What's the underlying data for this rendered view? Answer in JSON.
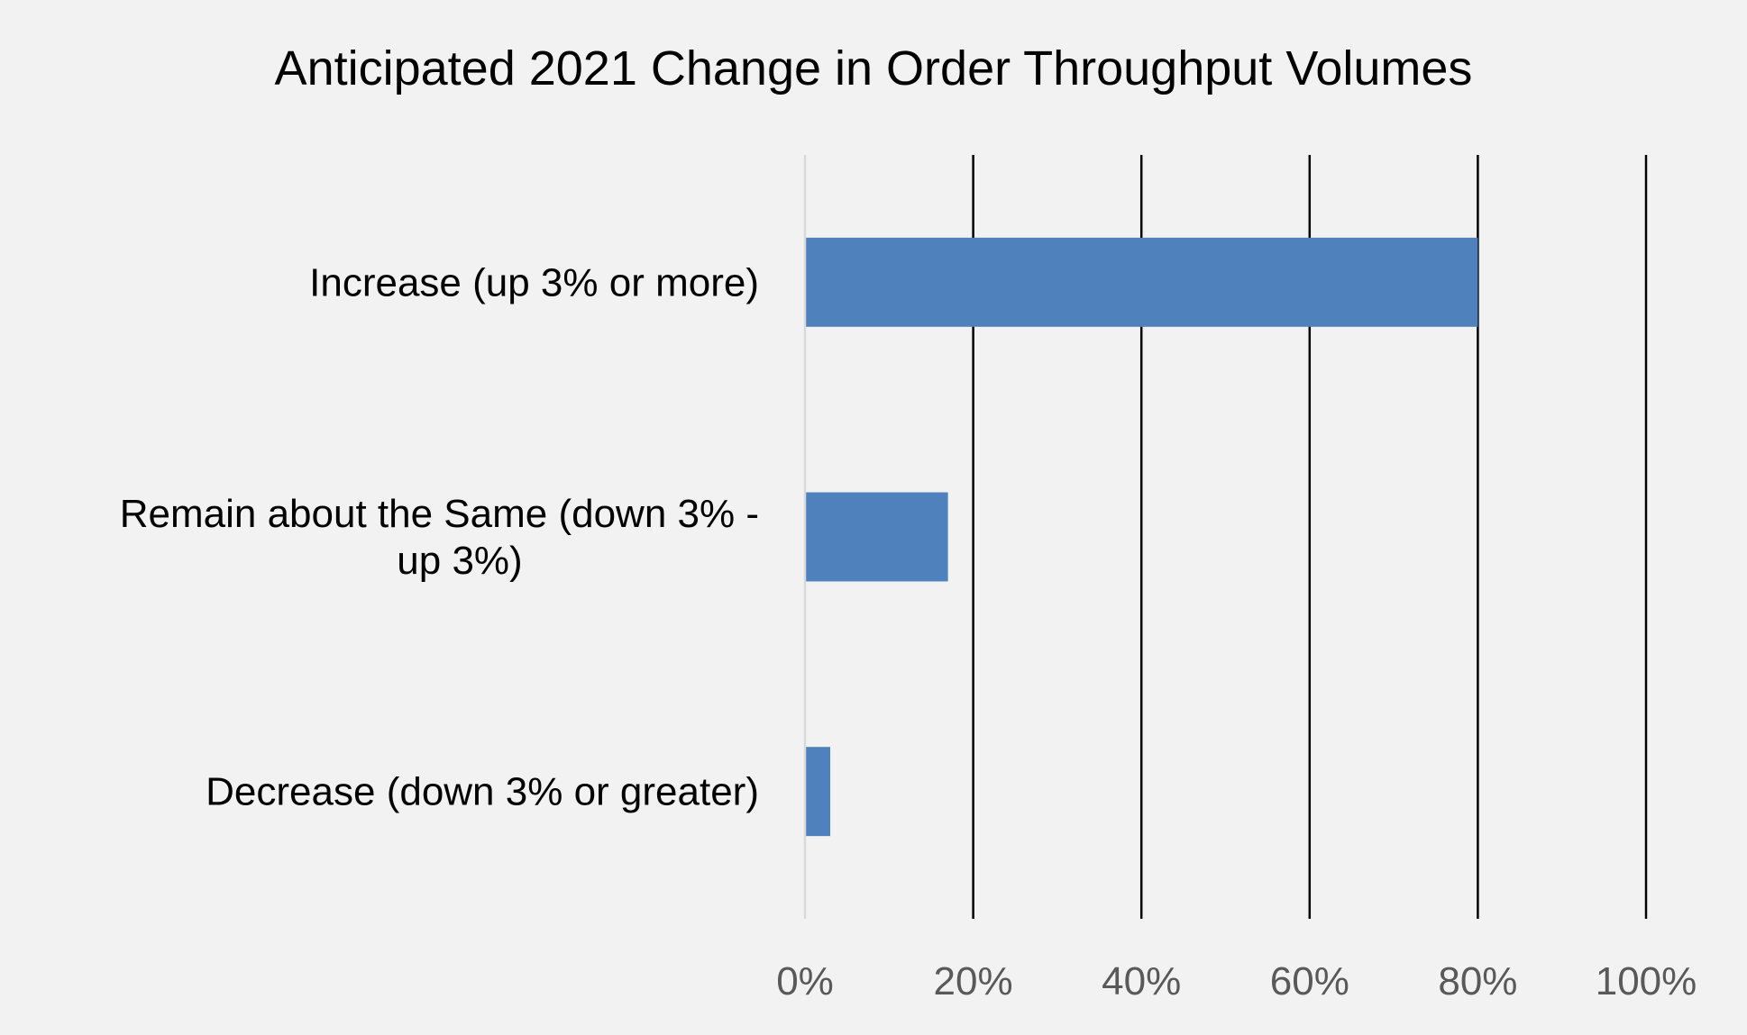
{
  "chart_data": {
    "type": "bar",
    "orientation": "horizontal",
    "title": "Anticipated 2021 Change in Order Throughput Volumes",
    "categories": [
      [
        "Increase (up 3% or more)"
      ],
      [
        "Remain about the Same  (down 3% -",
        "up 3%)"
      ],
      [
        "Decrease (down 3% or greater)"
      ]
    ],
    "values": [
      80,
      17,
      3
    ],
    "xlim": [
      0,
      100
    ],
    "xticks": [
      0,
      20,
      40,
      60,
      80,
      100
    ],
    "xtick_labels": [
      "0%",
      "20%",
      "40%",
      "60%",
      "80%",
      "100%"
    ],
    "grid": "vertical",
    "legend": "none",
    "colors": {
      "bar": "#4f81bd",
      "background": "#f2f2f2",
      "gridline": "#000000",
      "axis_line": "#d9d9d9",
      "tick_text": "#595959",
      "text": "#000000"
    }
  }
}
